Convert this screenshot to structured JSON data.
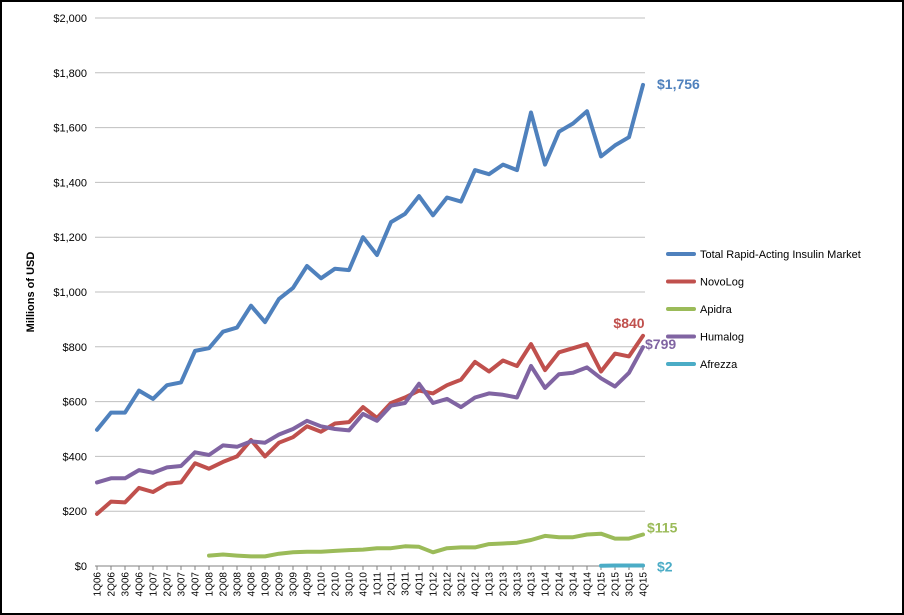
{
  "chart_data": {
    "type": "line",
    "ylabel": "Millions of USD",
    "ylim": [
      0,
      2000
    ],
    "yticks": [
      0,
      200,
      400,
      600,
      800,
      1000,
      1200,
      1400,
      1600,
      1800,
      2000
    ],
    "ytick_labels": [
      "$0",
      "$200",
      "$400",
      "$600",
      "$800",
      "$1,000",
      "$1,200",
      "$1,400",
      "$1,600",
      "$1,800",
      "$2,000"
    ],
    "grid": "horizontal",
    "legend_position": "right",
    "categories": [
      "1Q06",
      "2Q06",
      "3Q06",
      "4Q06",
      "1Q07",
      "2Q07",
      "3Q07",
      "4Q07",
      "1Q08",
      "2Q08",
      "3Q08",
      "4Q08",
      "1Q09",
      "2Q09",
      "3Q09",
      "4Q09",
      "1Q10",
      "2Q10",
      "3Q10",
      "4Q10",
      "1Q11",
      "2Q11",
      "3Q11",
      "4Q11",
      "1Q12",
      "2Q12",
      "3Q12",
      "4Q12",
      "1Q13",
      "2Q13",
      "3Q13",
      "4Q13",
      "1Q14",
      "2Q14",
      "3Q14",
      "4Q14",
      "1Q15",
      "2Q15",
      "3Q15",
      "4Q15"
    ],
    "series": [
      {
        "name": "Total Rapid-Acting Insulin Market",
        "color": "#4F81BD",
        "end_label": "$1,756",
        "values": [
          497,
          560,
          560,
          640,
          610,
          660,
          670,
          785,
          795,
          855,
          870,
          950,
          890,
          975,
          1015,
          1095,
          1050,
          1085,
          1080,
          1200,
          1135,
          1255,
          1285,
          1350,
          1280,
          1345,
          1330,
          1445,
          1430,
          1465,
          1445,
          1655,
          1465,
          1585,
          1615,
          1660,
          1495,
          1535,
          1565,
          1756
        ]
      },
      {
        "name": "NovoLog",
        "color": "#C0504D",
        "end_label": "$840",
        "values": [
          190,
          235,
          232,
          285,
          270,
          300,
          305,
          375,
          355,
          380,
          400,
          460,
          400,
          450,
          470,
          510,
          490,
          520,
          525,
          580,
          540,
          595,
          615,
          640,
          630,
          660,
          680,
          745,
          710,
          750,
          730,
          810,
          715,
          780,
          795,
          810,
          710,
          775,
          765,
          840
        ]
      },
      {
        "name": "Apidra",
        "color": "#9BBB59",
        "end_label": "$115",
        "values": [
          null,
          null,
          null,
          null,
          null,
          null,
          null,
          null,
          38,
          42,
          38,
          35,
          35,
          45,
          50,
          52,
          52,
          55,
          58,
          60,
          65,
          65,
          72,
          70,
          50,
          65,
          68,
          68,
          80,
          82,
          85,
          95,
          110,
          105,
          105,
          115,
          118,
          100,
          100,
          115
        ]
      },
      {
        "name": "Humalog",
        "color": "#8064A2",
        "end_label": "$799",
        "values": [
          305,
          320,
          320,
          350,
          340,
          360,
          365,
          415,
          405,
          440,
          435,
          455,
          450,
          480,
          500,
          530,
          510,
          500,
          495,
          555,
          530,
          585,
          595,
          665,
          595,
          610,
          580,
          615,
          630,
          625,
          615,
          730,
          650,
          700,
          705,
          725,
          685,
          655,
          705,
          799
        ]
      },
      {
        "name": "Afrezza",
        "color": "#4BACC6",
        "end_label": "$2",
        "values": [
          null,
          null,
          null,
          null,
          null,
          null,
          null,
          null,
          null,
          null,
          null,
          null,
          null,
          null,
          null,
          null,
          null,
          null,
          null,
          null,
          null,
          null,
          null,
          null,
          null,
          null,
          null,
          null,
          null,
          null,
          null,
          null,
          null,
          null,
          null,
          null,
          1,
          2,
          2,
          2
        ]
      }
    ]
  }
}
